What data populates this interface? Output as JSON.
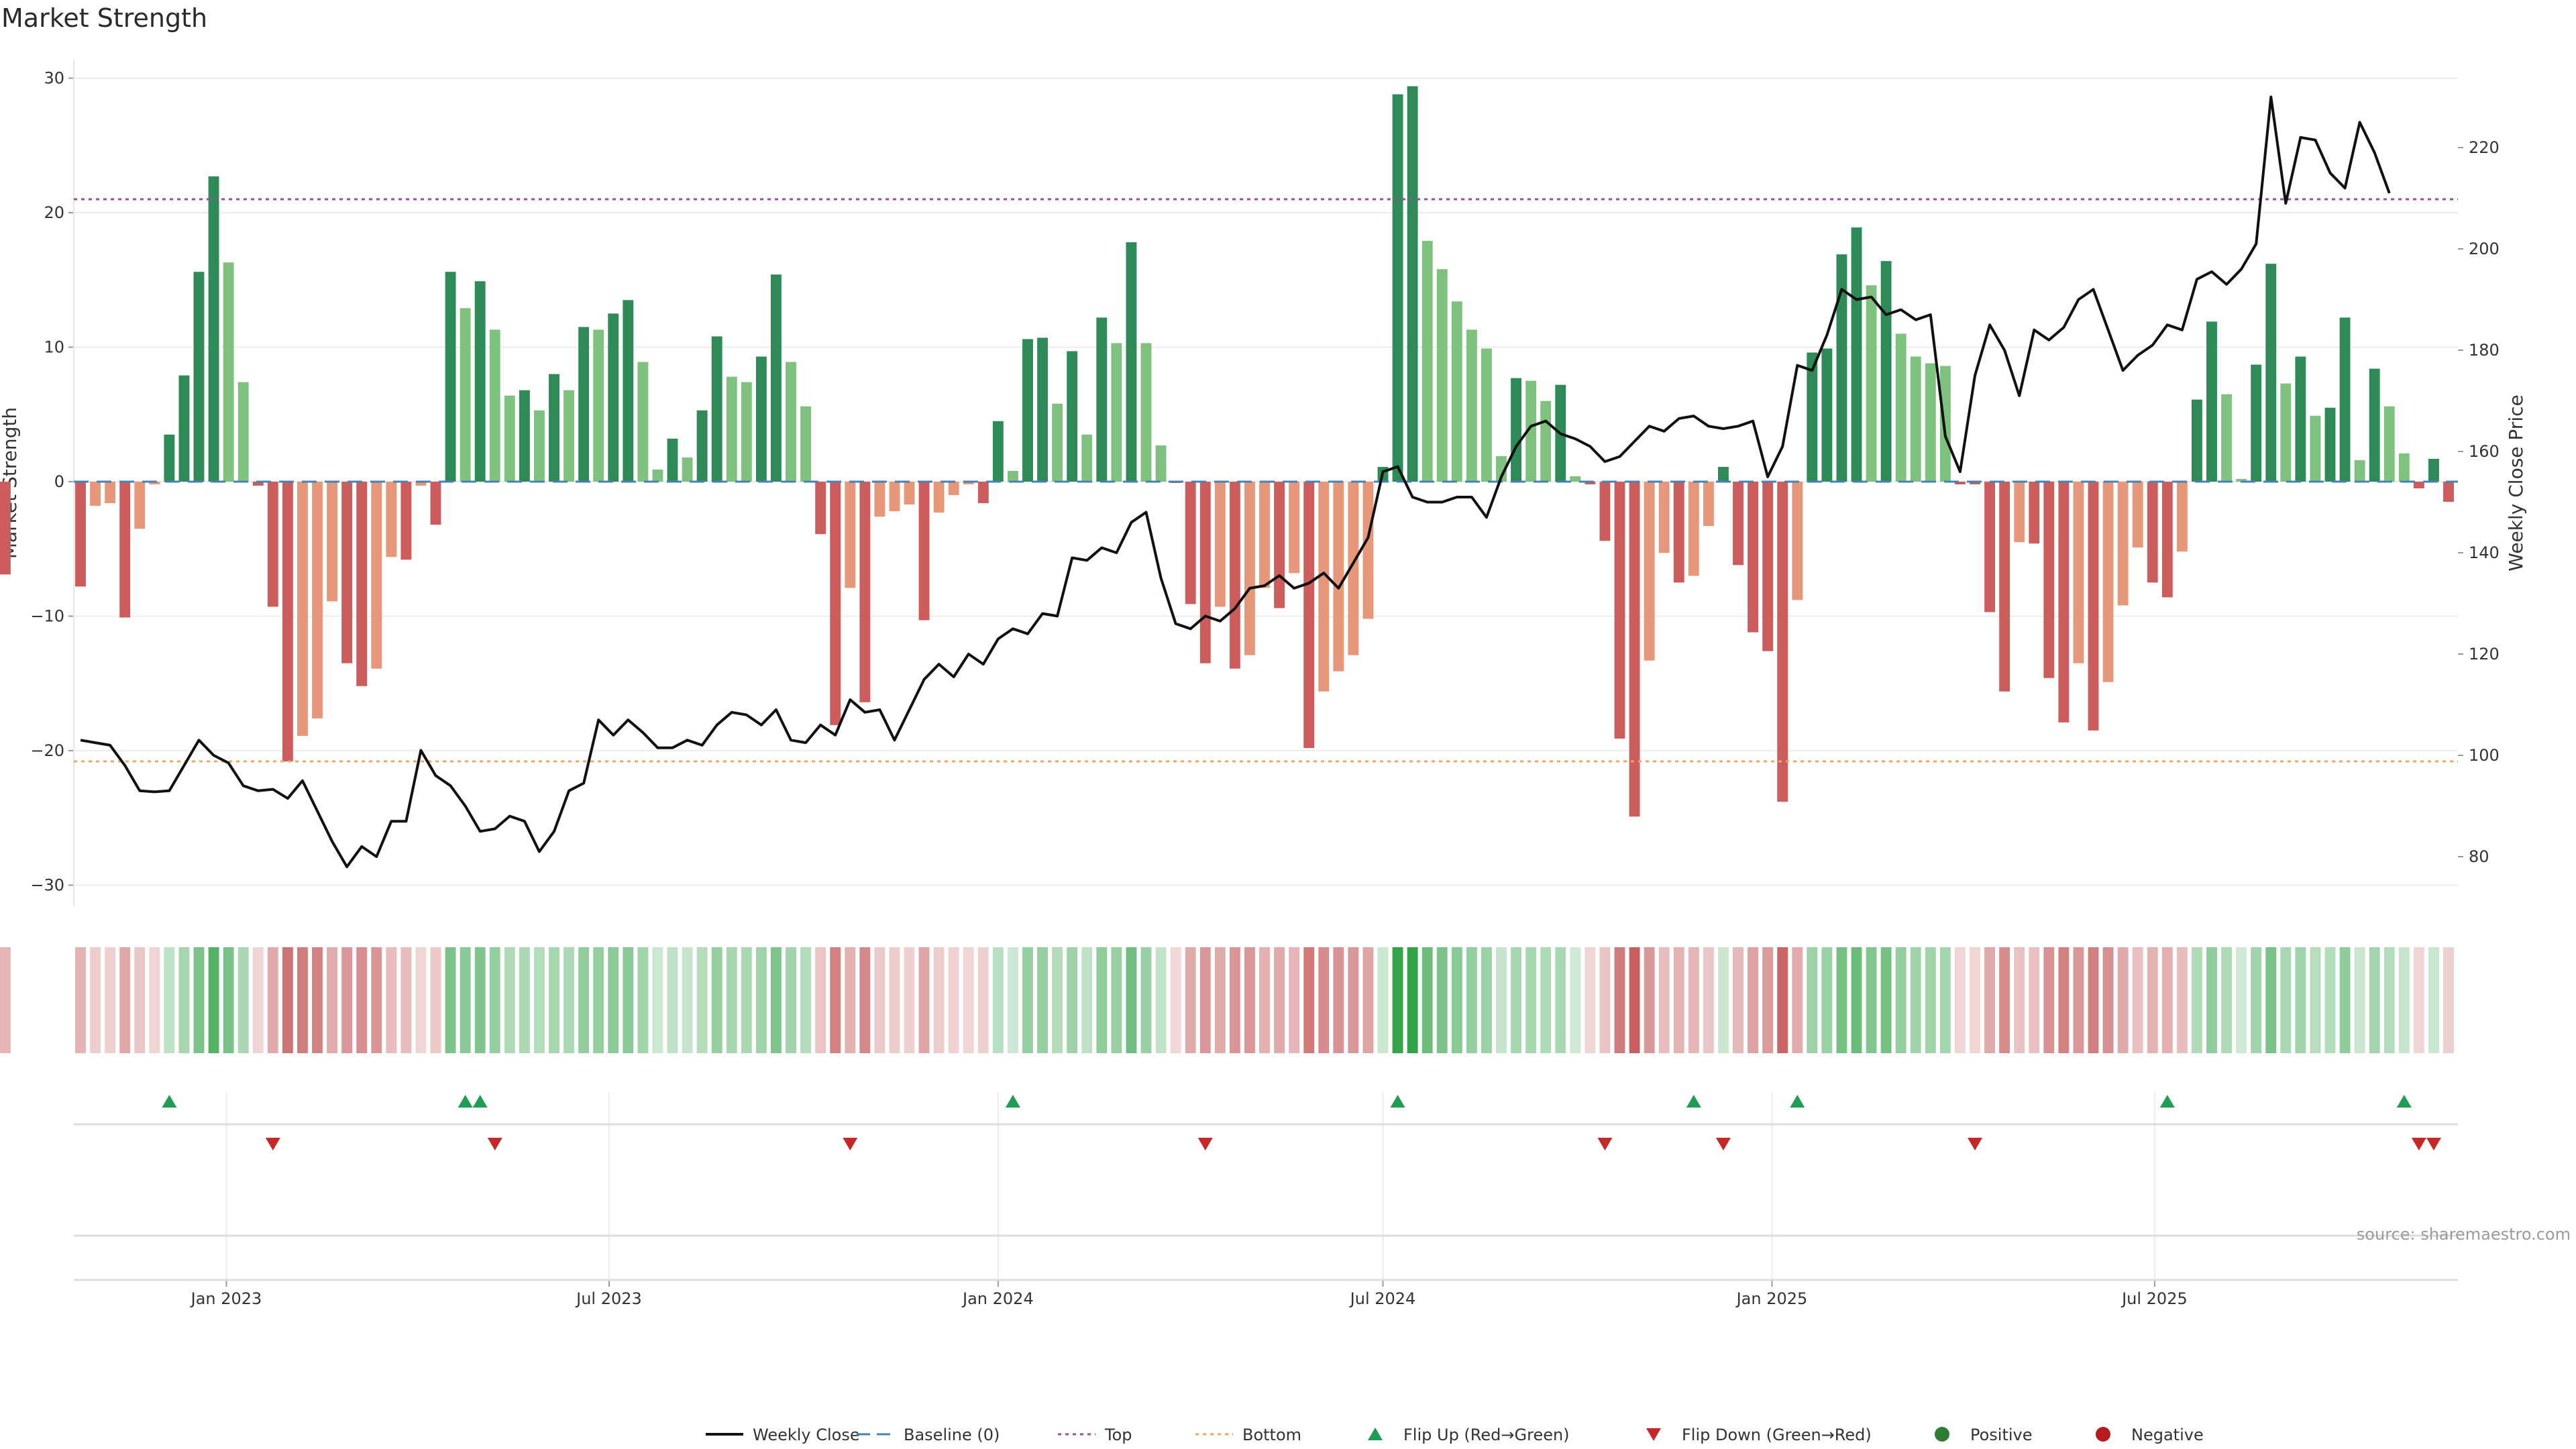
{
  "chart_data": {
    "type": "bar",
    "title": "Market Strength",
    "ylabel_left": "Market Strength",
    "ylabel_right": "Weekly Close Price",
    "source": "source: sharemaestro.com",
    "ylim_left": [
      -32,
      32
    ],
    "ylim_right": [
      70,
      235
    ],
    "left_ticks": [
      "30",
      "20",
      "10",
      "0",
      "−10",
      "−20",
      "−30"
    ],
    "right_ticks": [
      "220",
      "200",
      "180",
      "160",
      "140",
      "120",
      "100",
      "80"
    ],
    "x_ticks": [
      "Jan 2023",
      "Jul 2023",
      "Jan 2024",
      "Jul 2024",
      "Jan 2025",
      "Jul 2025"
    ],
    "top_threshold": 21,
    "bottom_threshold": -20.8,
    "grid": true,
    "legend_position": "bottom-center",
    "legend": [
      {
        "key": "weekly_close",
        "label": "Weekly Close"
      },
      {
        "key": "baseline",
        "label": "Baseline (0)"
      },
      {
        "key": "top",
        "label": "Top"
      },
      {
        "key": "bottom",
        "label": "Bottom"
      },
      {
        "key": "flip_up",
        "label": "Flip Up (Red→Green)"
      },
      {
        "key": "flip_down",
        "label": "Flip Down (Green→Red)"
      },
      {
        "key": "positive",
        "label": "Positive"
      },
      {
        "key": "negative",
        "label": "Negative"
      }
    ],
    "weeks": [
      "2022-10-24",
      "2022-10-31",
      "2022-11-07",
      "2022-11-14",
      "2022-11-21",
      "2022-11-28",
      "2022-12-05",
      "2022-12-12",
      "2022-12-19",
      "2022-12-26",
      "2023-01-02",
      "2023-01-09",
      "2023-01-16",
      "2023-01-23",
      "2023-01-30",
      "2023-02-06",
      "2023-02-13",
      "2023-02-20",
      "2023-02-27",
      "2023-03-06",
      "2023-03-13",
      "2023-03-20",
      "2023-03-27",
      "2023-04-03",
      "2023-04-10",
      "2023-04-17",
      "2023-04-24",
      "2023-05-01",
      "2023-05-08",
      "2023-05-15",
      "2023-05-22",
      "2023-05-29",
      "2023-06-05",
      "2023-06-12",
      "2023-06-19",
      "2023-06-26",
      "2023-07-03",
      "2023-07-10",
      "2023-07-17",
      "2023-07-24",
      "2023-07-31",
      "2023-08-07",
      "2023-08-14",
      "2023-08-21",
      "2023-08-28",
      "2023-09-04",
      "2023-09-11",
      "2023-09-18",
      "2023-09-25",
      "2023-10-02",
      "2023-10-09",
      "2023-10-16",
      "2023-10-23",
      "2023-10-30",
      "2023-11-06",
      "2023-11-13",
      "2023-11-20",
      "2023-11-27",
      "2023-12-04",
      "2023-12-11",
      "2023-12-18",
      "2023-12-25",
      "2024-01-01",
      "2024-01-08",
      "2024-01-15",
      "2024-01-22",
      "2024-01-29",
      "2024-02-05",
      "2024-02-12",
      "2024-02-19",
      "2024-02-26",
      "2024-03-04",
      "2024-03-11",
      "2024-03-18",
      "2024-03-25",
      "2024-04-01",
      "2024-04-08",
      "2024-04-15",
      "2024-04-22",
      "2024-04-29",
      "2024-05-06",
      "2024-05-13",
      "2024-05-20",
      "2024-05-27",
      "2024-06-03",
      "2024-06-10",
      "2024-06-17",
      "2024-06-24",
      "2024-07-01",
      "2024-07-08",
      "2024-07-15",
      "2024-07-22",
      "2024-07-29",
      "2024-08-05",
      "2024-08-12",
      "2024-08-19",
      "2024-08-26",
      "2024-09-02",
      "2024-09-09",
      "2024-09-16",
      "2024-09-23",
      "2024-09-30",
      "2024-10-07",
      "2024-10-14",
      "2024-10-21",
      "2024-10-28",
      "2024-11-04",
      "2024-11-11",
      "2024-11-18",
      "2024-11-25",
      "2024-12-02",
      "2024-12-09",
      "2024-12-16",
      "2024-12-23",
      "2024-12-30",
      "2025-01-06",
      "2025-01-13",
      "2025-01-20",
      "2025-01-27",
      "2025-02-03",
      "2025-02-10",
      "2025-02-17",
      "2025-02-24",
      "2025-03-03",
      "2025-03-10",
      "2025-03-17",
      "2025-03-24",
      "2025-03-31",
      "2025-04-07",
      "2025-04-14",
      "2025-04-21",
      "2025-04-28",
      "2025-05-05",
      "2025-05-12",
      "2025-05-19",
      "2025-05-26",
      "2025-06-02",
      "2025-06-09",
      "2025-06-16",
      "2025-06-23",
      "2025-06-30",
      "2025-07-07",
      "2025-07-14",
      "2025-07-21",
      "2025-07-28",
      "2025-08-04",
      "2025-08-11",
      "2025-08-18",
      "2025-08-25",
      "2025-09-01",
      "2025-09-08",
      "2025-09-15",
      "2025-09-22",
      "2025-09-29",
      "2025-10-06",
      "2025-10-13",
      "2025-10-20",
      "2025-10-27",
      "2025-11-03",
      "2025-11-10",
      "2025-11-17"
    ],
    "strength": [
      -7.8,
      -1.8,
      -1.6,
      -10.1,
      -3.5,
      -0.2,
      3.5,
      7.9,
      15.6,
      22.7,
      16.3,
      7.4,
      -0.3,
      -9.3,
      -20.8,
      -18.9,
      -17.6,
      -8.9,
      -13.5,
      -15.2,
      -13.9,
      -5.6,
      -5.8,
      -0.3,
      -3.2,
      15.6,
      12.9,
      14.9,
      11.3,
      6.4,
      6.8,
      5.3,
      8.0,
      6.8,
      11.5,
      11.3,
      12.5,
      13.5,
      8.9,
      0.9,
      3.2,
      1.8,
      5.3,
      10.8,
      7.8,
      7.4,
      9.3,
      15.4,
      8.9,
      5.6,
      -3.9,
      -18.1,
      -7.9,
      -16.4,
      -2.6,
      -2.2,
      -1.7,
      -10.3,
      -2.3,
      -1.0,
      -0.2,
      -1.6,
      4.5,
      0.8,
      10.6,
      10.7,
      5.8,
      9.7,
      3.5,
      12.2,
      10.3,
      17.8,
      10.3,
      2.7,
      -0.1,
      -9.1,
      -13.5,
      -9.3,
      -13.9,
      -12.9,
      -7.9,
      -9.4,
      -6.8,
      -19.8,
      -15.6,
      -14.1,
      -12.9,
      -10.2,
      1.1,
      28.8,
      29.4,
      17.9,
      15.8,
      13.4,
      11.3,
      9.9,
      1.9,
      7.7,
      7.5,
      6.0,
      7.2,
      0.4,
      -0.2,
      -4.4,
      -19.1,
      -24.9,
      -13.3,
      -5.3,
      -7.5,
      -7.0,
      -3.3,
      1.1,
      -6.2,
      -11.2,
      -12.6,
      -23.8,
      -8.8,
      9.6,
      9.9,
      16.9,
      18.9,
      14.6,
      16.4,
      11.0,
      9.3,
      8.8,
      8.6,
      -0.2,
      -0.2,
      -9.7,
      -15.6,
      -4.5,
      -4.6,
      -14.6,
      -17.9,
      -13.5,
      -18.5,
      -14.9,
      -9.2,
      -4.9,
      -7.5,
      -8.6,
      -5.2,
      6.1,
      11.9,
      6.5,
      0.2,
      8.7,
      16.2,
      7.3,
      9.3,
      4.9,
      5.5,
      12.2,
      1.6,
      8.4,
      5.6,
      2.1,
      -0.5,
      1.7,
      -1.5,
      -6.9
    ],
    "weekly_close": [
      103,
      102.5,
      102,
      98,
      93,
      92.8,
      93,
      98,
      103,
      100,
      98.5,
      94,
      93,
      93.3,
      91.5,
      95,
      89,
      83,
      78,
      82,
      80,
      87,
      87,
      101,
      96,
      94,
      90,
      85,
      85.5,
      88,
      87,
      81,
      85,
      93,
      94.5,
      107,
      104,
      107,
      104.5,
      101.5,
      101.5,
      103,
      102,
      106,
      108.5,
      108,
      106,
      109,
      103,
      102.5,
      106,
      104,
      111,
      108.5,
      109,
      103,
      109,
      115,
      118,
      115.5,
      120,
      118,
      123,
      125,
      124,
      128,
      127.5,
      139,
      138.5,
      141,
      140,
      146,
      148,
      135,
      126,
      125,
      127.5,
      126.5,
      129,
      133,
      133.5,
      135.5,
      133,
      134,
      136,
      133,
      138,
      143,
      156,
      157,
      151,
      150,
      150,
      151,
      151,
      147,
      155,
      161,
      165,
      166,
      163.5,
      162.5,
      161,
      158,
      159,
      162,
      165,
      164,
      166.5,
      167,
      165,
      164.5,
      165,
      166,
      155,
      161,
      177,
      176,
      183,
      192,
      190,
      190.5,
      187,
      188,
      186,
      187,
      163,
      156,
      175,
      185,
      180,
      171,
      184,
      182,
      184.5,
      190,
      192,
      184,
      176,
      179,
      181,
      185,
      184,
      194,
      195.5,
      193,
      196,
      201,
      230,
      209,
      222,
      221.5,
      215,
      212,
      225,
      219,
      211
    ],
    "flip_up_weeks": [
      "2022-12-05",
      "2023-04-24",
      "2023-05-01",
      "2024-01-08",
      "2024-07-08",
      "2024-11-25",
      "2025-01-13",
      "2025-07-07",
      "2025-10-27"
    ],
    "flip_down_weeks": [
      "2023-01-23",
      "2023-05-08",
      "2023-10-23",
      "2024-04-08",
      "2024-10-14",
      "2024-12-09",
      "2025-04-07",
      "2025-11-03",
      "2025-11-10"
    ],
    "positive_color": "#2e8b57",
    "negative_color": "#cd5c5c"
  }
}
